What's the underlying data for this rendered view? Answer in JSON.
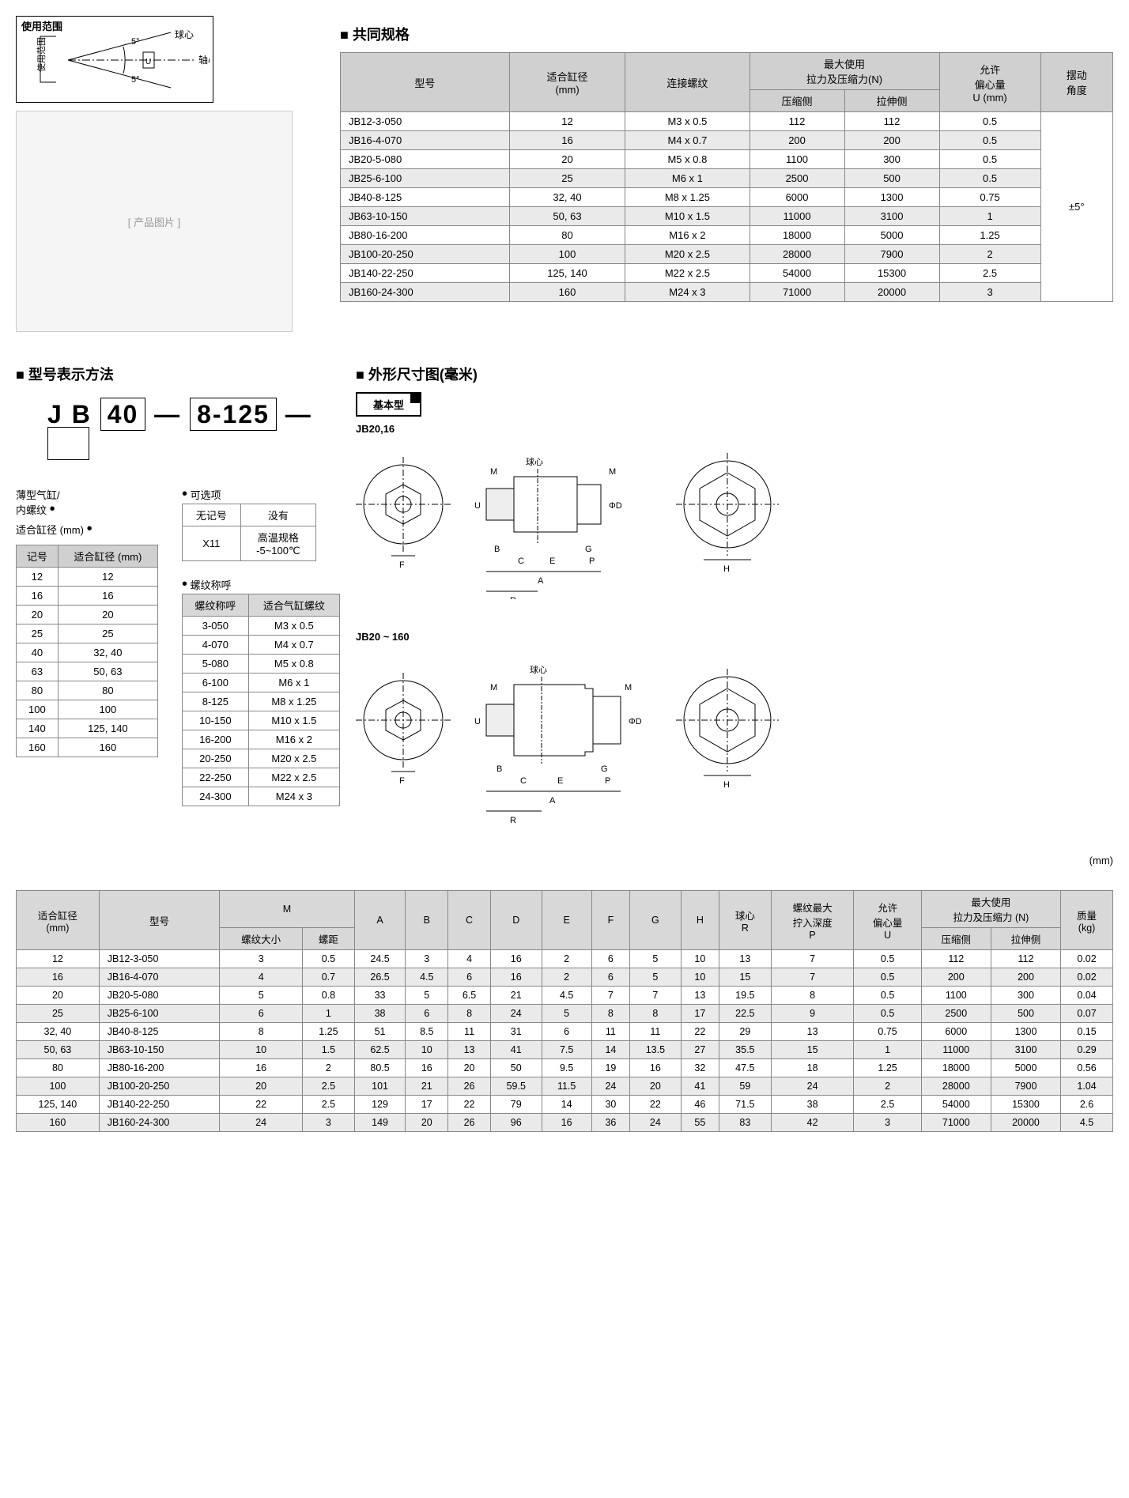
{
  "labels": {
    "usage_range": "使用范围",
    "ball_center": "球心",
    "axis": "轴心",
    "spec_title": "共同规格",
    "model_title": "型号表示方法",
    "dim_title": "外形尺寸图(毫米)",
    "basic_type": "基本型",
    "jb2016": "JB20,16",
    "jb20_160": "JB20 ~ 160",
    "options_label": "可选项",
    "no_mark": "无记号",
    "none": "没有",
    "x11": "X11",
    "hightemp": "高温规格\n-5~100℃",
    "bore_label": "适合缸径 (mm)",
    "mark_col": "记号",
    "bore_col": "适合缸径 (mm)",
    "thread_label": "螺纹称呼",
    "thread_col1": "螺纹称呼",
    "thread_col2": "适合气缸螺纹",
    "thin_cyl": "薄型气缸/\n内螺纹",
    "code_jb": "J B",
    "code_40": "40",
    "code_8125": "8-125",
    "dash": "—",
    "mm_unit": "(mm)"
  },
  "spec_headers": {
    "model": "型号",
    "bore": "适合缸径\n(mm)",
    "thread": "连接螺纹",
    "maxforce": "最大使用\n拉力及压缩力(N)",
    "comp": "压缩侧",
    "tens": "拉伸侧",
    "offset": "允许\n偏心量\nU (mm)",
    "angle": "摆动\n角度"
  },
  "specs": [
    {
      "m": "JB12-3-050",
      "b": "12",
      "t": "M3 x 0.5",
      "c": "112",
      "e": "112",
      "u": "0.5"
    },
    {
      "m": "JB16-4-070",
      "b": "16",
      "t": "M4 x 0.7",
      "c": "200",
      "e": "200",
      "u": "0.5"
    },
    {
      "m": "JB20-5-080",
      "b": "20",
      "t": "M5 x 0.8",
      "c": "1100",
      "e": "300",
      "u": "0.5"
    },
    {
      "m": "JB25-6-100",
      "b": "25",
      "t": "M6 x 1",
      "c": "2500",
      "e": "500",
      "u": "0.5"
    },
    {
      "m": "JB40-8-125",
      "b": "32, 40",
      "t": "M8 x 1.25",
      "c": "6000",
      "e": "1300",
      "u": "0.75"
    },
    {
      "m": "JB63-10-150",
      "b": "50, 63",
      "t": "M10 x 1.5",
      "c": "11000",
      "e": "3100",
      "u": "1"
    },
    {
      "m": "JB80-16-200",
      "b": "80",
      "t": "M16 x 2",
      "c": "18000",
      "e": "5000",
      "u": "1.25"
    },
    {
      "m": "JB100-20-250",
      "b": "100",
      "t": "M20 x 2.5",
      "c": "28000",
      "e": "7900",
      "u": "2"
    },
    {
      "m": "JB140-22-250",
      "b": "125, 140",
      "t": "M22 x 2.5",
      "c": "54000",
      "e": "15300",
      "u": "2.5"
    },
    {
      "m": "JB160-24-300",
      "b": "160",
      "t": "M24 x 3",
      "c": "71000",
      "e": "20000",
      "u": "3"
    }
  ],
  "angle_value": "±5°",
  "bores": [
    {
      "k": "12",
      "v": "12"
    },
    {
      "k": "16",
      "v": "16"
    },
    {
      "k": "20",
      "v": "20"
    },
    {
      "k": "25",
      "v": "25"
    },
    {
      "k": "40",
      "v": "32, 40"
    },
    {
      "k": "63",
      "v": "50, 63"
    },
    {
      "k": "80",
      "v": "80"
    },
    {
      "k": "100",
      "v": "100"
    },
    {
      "k": "140",
      "v": "125, 140"
    },
    {
      "k": "160",
      "v": "160"
    }
  ],
  "threads": [
    {
      "k": "3-050",
      "v": "M3 x 0.5"
    },
    {
      "k": "4-070",
      "v": "M4 x 0.7"
    },
    {
      "k": "5-080",
      "v": "M5 x 0.8"
    },
    {
      "k": "6-100",
      "v": "M6 x 1"
    },
    {
      "k": "8-125",
      "v": "M8 x 1.25"
    },
    {
      "k": "10-150",
      "v": "M10 x 1.5"
    },
    {
      "k": "16-200",
      "v": "M16 x 2"
    },
    {
      "k": "20-250",
      "v": "M20 x 2.5"
    },
    {
      "k": "22-250",
      "v": "M22 x 2.5"
    },
    {
      "k": "24-300",
      "v": "M24 x 3"
    }
  ],
  "big_headers": {
    "bore": "适合缸径\n(mm)",
    "model": "型号",
    "M": "M",
    "tsize": "螺纹大小",
    "pitch": "螺距",
    "A": "A",
    "B": "B",
    "C": "C",
    "D": "D",
    "E": "E",
    "F": "F",
    "G": "G",
    "H": "H",
    "R": "球心\nR",
    "P": "螺纹最大\n拧入深度\nP",
    "U": "允许\n偏心量\nU",
    "force": "最大使用\n拉力及压缩力 (N)",
    "comp": "压缩侧",
    "tens": "拉伸侧",
    "mass": "质量\n(kg)"
  },
  "big_rows": [
    {
      "b": "12",
      "m": "JB12-3-050",
      "ts": "3",
      "p": "0.5",
      "A": "24.5",
      "B": "3",
      "C": "4",
      "D": "16",
      "E": "2",
      "F": "6",
      "G": "5",
      "H": "10",
      "R": "13",
      "Pd": "7",
      "U": "0.5",
      "cp": "112",
      "tn": "112",
      "kg": "0.02"
    },
    {
      "b": "16",
      "m": "JB16-4-070",
      "ts": "4",
      "p": "0.7",
      "A": "26.5",
      "B": "4.5",
      "C": "6",
      "D": "16",
      "E": "2",
      "F": "6",
      "G": "5",
      "H": "10",
      "R": "15",
      "Pd": "7",
      "U": "0.5",
      "cp": "200",
      "tn": "200",
      "kg": "0.02"
    },
    {
      "b": "20",
      "m": "JB20-5-080",
      "ts": "5",
      "p": "0.8",
      "A": "33",
      "B": "5",
      "C": "6.5",
      "D": "21",
      "E": "4.5",
      "F": "7",
      "G": "7",
      "H": "13",
      "R": "19.5",
      "Pd": "8",
      "U": "0.5",
      "cp": "1100",
      "tn": "300",
      "kg": "0.04"
    },
    {
      "b": "25",
      "m": "JB25-6-100",
      "ts": "6",
      "p": "1",
      "A": "38",
      "B": "6",
      "C": "8",
      "D": "24",
      "E": "5",
      "F": "8",
      "G": "8",
      "H": "17",
      "R": "22.5",
      "Pd": "9",
      "U": "0.5",
      "cp": "2500",
      "tn": "500",
      "kg": "0.07"
    },
    {
      "b": "32, 40",
      "m": "JB40-8-125",
      "ts": "8",
      "p": "1.25",
      "A": "51",
      "B": "8.5",
      "C": "11",
      "D": "31",
      "E": "6",
      "F": "11",
      "G": "11",
      "H": "22",
      "R": "29",
      "Pd": "13",
      "U": "0.75",
      "cp": "6000",
      "tn": "1300",
      "kg": "0.15"
    },
    {
      "b": "50, 63",
      "m": "JB63-10-150",
      "ts": "10",
      "p": "1.5",
      "A": "62.5",
      "B": "10",
      "C": "13",
      "D": "41",
      "E": "7.5",
      "F": "14",
      "G": "13.5",
      "H": "27",
      "R": "35.5",
      "Pd": "15",
      "U": "1",
      "cp": "11000",
      "tn": "3100",
      "kg": "0.29"
    },
    {
      "b": "80",
      "m": "JB80-16-200",
      "ts": "16",
      "p": "2",
      "A": "80.5",
      "B": "16",
      "C": "20",
      "D": "50",
      "E": "9.5",
      "F": "19",
      "G": "16",
      "H": "32",
      "R": "47.5",
      "Pd": "18",
      "U": "1.25",
      "cp": "18000",
      "tn": "5000",
      "kg": "0.56"
    },
    {
      "b": "100",
      "m": "JB100-20-250",
      "ts": "20",
      "p": "2.5",
      "A": "101",
      "B": "21",
      "C": "26",
      "D": "59.5",
      "E": "11.5",
      "F": "24",
      "G": "20",
      "H": "41",
      "R": "59",
      "Pd": "24",
      "U": "2",
      "cp": "28000",
      "tn": "7900",
      "kg": "1.04"
    },
    {
      "b": "125, 140",
      "m": "JB140-22-250",
      "ts": "22",
      "p": "2.5",
      "A": "129",
      "B": "17",
      "C": "22",
      "D": "79",
      "E": "14",
      "F": "30",
      "G": "22",
      "H": "46",
      "R": "71.5",
      "Pd": "38",
      "U": "2.5",
      "cp": "54000",
      "tn": "15300",
      "kg": "2.6"
    },
    {
      "b": "160",
      "m": "JB160-24-300",
      "ts": "24",
      "p": "3",
      "A": "149",
      "B": "20",
      "C": "26",
      "D": "96",
      "E": "16",
      "F": "36",
      "G": "24",
      "H": "55",
      "R": "83",
      "Pd": "42",
      "U": "3",
      "cp": "71000",
      "tn": "20000",
      "kg": "4.5"
    }
  ],
  "photo_placeholder": "[ 产品图片 ]"
}
